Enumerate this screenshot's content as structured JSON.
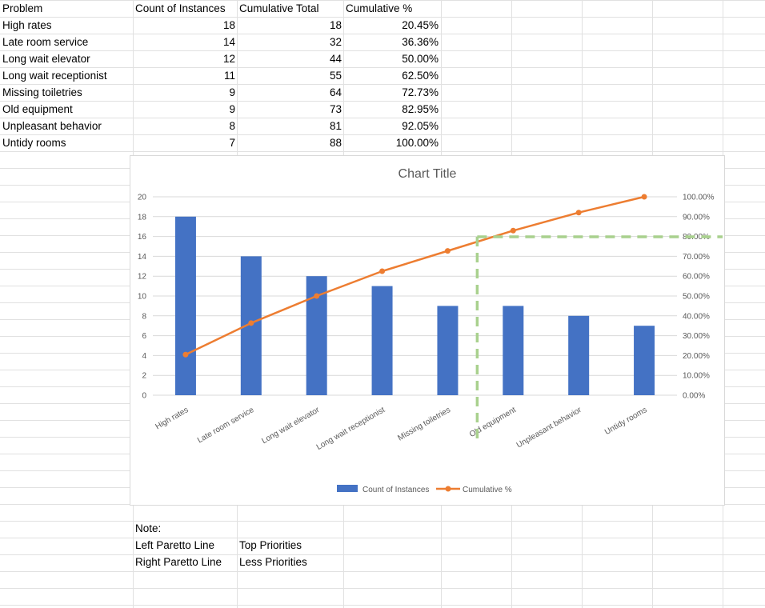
{
  "sheet": {
    "headers": [
      "Problem",
      "Count of Instances",
      "Cumulative Total",
      "Cumulative %"
    ],
    "rows": [
      [
        "High rates",
        "18",
        "18",
        "20.45%"
      ],
      [
        "Late room service",
        "14",
        "32",
        "36.36%"
      ],
      [
        "Long wait elevator",
        "12",
        "44",
        "50.00%"
      ],
      [
        "Long wait receptionist",
        "11",
        "55",
        "62.50%"
      ],
      [
        "Missing toiletries",
        "9",
        "64",
        "72.73%"
      ],
      [
        "Old equipment",
        "9",
        "73",
        "82.95%"
      ],
      [
        "Unpleasant behavior",
        "8",
        "81",
        "92.05%"
      ],
      [
        "Untidy rooms",
        "7",
        "88",
        "100.00%"
      ]
    ],
    "note": {
      "label": "Note:",
      "rows": [
        [
          "Left Paretto Line",
          "Top Priorities"
        ],
        [
          "Right Paretto Line",
          "Less Priorities"
        ]
      ]
    }
  },
  "chart_data": {
    "type": "bar",
    "title": "Chart Title",
    "categories": [
      "High rates",
      "Late room service",
      "Long wait elevator",
      "Long wait receptionist",
      "Missing toiletries",
      "Old equipment",
      "Unpleasant behavior",
      "Untidy rooms"
    ],
    "series": [
      {
        "name": "Count of Instances",
        "type": "bar",
        "axis": "left",
        "values": [
          18,
          14,
          12,
          11,
          9,
          9,
          8,
          7
        ],
        "color": "#4472C4"
      },
      {
        "name": "Cumulative %",
        "type": "line",
        "axis": "right",
        "values": [
          20.45,
          36.36,
          50.0,
          62.5,
          72.73,
          82.95,
          92.05,
          100.0
        ],
        "color": "#ED7D31"
      }
    ],
    "y_left": {
      "min": 0,
      "max": 20,
      "step": 2,
      "ticks": [
        "0",
        "2",
        "4",
        "6",
        "8",
        "10",
        "12",
        "14",
        "16",
        "18",
        "20"
      ]
    },
    "y_right": {
      "min": 0,
      "max": 100,
      "step": 10,
      "ticks": [
        "0.00%",
        "10.00%",
        "20.00%",
        "30.00%",
        "40.00%",
        "50.00%",
        "60.00%",
        "70.00%",
        "80.00%",
        "90.00%",
        "100.00%"
      ]
    },
    "pareto_lines": {
      "color": "#A9D18E",
      "vertical_between_categories": [
        4,
        5
      ],
      "horizontal_at_percent": 75
    },
    "grid": true,
    "legend": "bottom"
  }
}
